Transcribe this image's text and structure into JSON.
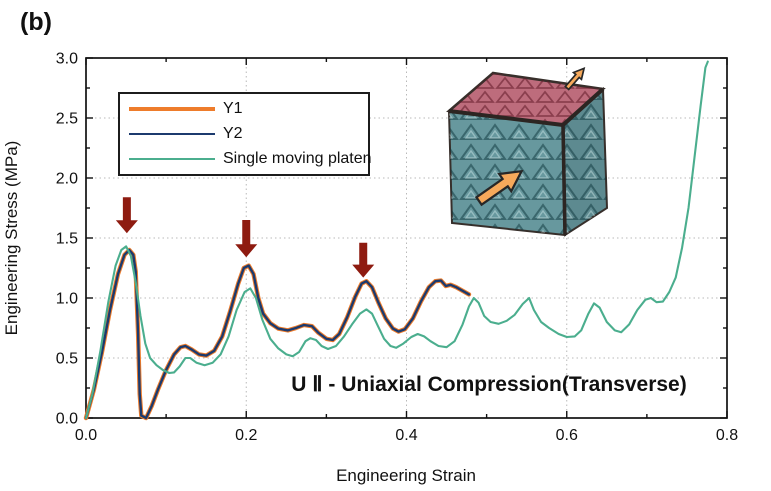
{
  "figure_label": "(b)",
  "annotation": {
    "text": "U Ⅱ - Uniaxial Compression(Transverse)"
  },
  "colors": {
    "y1_orange": "#ee7c2b",
    "y2_navy": "#1c3a6e",
    "single_platen_teal": "#4bae8e",
    "arrow_dark_red": "#8e1b10",
    "grid_gray": "#b9b9b9",
    "frame_black": "#111111"
  },
  "legend": {
    "position": "upper-left",
    "items": [
      "Y1",
      "Y2",
      "Single moving platen"
    ]
  },
  "chart_data": {
    "type": "line",
    "title": "",
    "xlabel": "Engineering Strain",
    "ylabel": "Engineering Stress (MPa)",
    "xlim": [
      0.0,
      0.8
    ],
    "ylim": [
      0.0,
      3.0
    ],
    "x_major_ticks": {
      "values": [
        0.0,
        0.2,
        0.4,
        0.6,
        0.8
      ],
      "labels": [
        "0.0",
        "0.2",
        "0.4",
        "0.6",
        "0.8"
      ]
    },
    "x_minor_step": 0.1,
    "y_major_ticks": {
      "values": [
        0.0,
        0.5,
        1.0,
        1.5,
        2.0,
        2.5,
        3.0
      ],
      "labels": [
        "0.0",
        "0.5",
        "1.0",
        "1.5",
        "2.0",
        "2.5",
        "3.0"
      ]
    },
    "y_minor_step": 0.25,
    "grid": {
      "on": true,
      "style": "dotted",
      "x_values": [
        0.2,
        0.4,
        0.6
      ],
      "y_values": [
        0.5,
        1.0,
        1.5,
        2.0,
        2.5
      ]
    },
    "legend_position": "upper-left",
    "series": [
      {
        "name": "Y1",
        "color": "#ee7c2b",
        "width": 4.4,
        "points": [
          [
            0,
            0
          ],
          [
            0.01,
            0.24
          ],
          [
            0.02,
            0.55
          ],
          [
            0.03,
            0.9
          ],
          [
            0.04,
            1.2
          ],
          [
            0.048,
            1.36
          ],
          [
            0.054,
            1.4
          ],
          [
            0.059,
            1.36
          ],
          [
            0.062,
            1.22
          ],
          [
            0.065,
            0.7
          ],
          [
            0.067,
            0.2
          ],
          [
            0.069,
            0.02
          ],
          [
            0.075,
            0
          ],
          [
            0.082,
            0.1
          ],
          [
            0.09,
            0.24
          ],
          [
            0.1,
            0.4
          ],
          [
            0.11,
            0.53
          ],
          [
            0.118,
            0.59
          ],
          [
            0.124,
            0.6
          ],
          [
            0.132,
            0.57
          ],
          [
            0.141,
            0.53
          ],
          [
            0.15,
            0.52
          ],
          [
            0.16,
            0.56
          ],
          [
            0.17,
            0.68
          ],
          [
            0.18,
            0.89
          ],
          [
            0.19,
            1.12
          ],
          [
            0.197,
            1.25
          ],
          [
            0.203,
            1.27
          ],
          [
            0.209,
            1.2
          ],
          [
            0.215,
            1
          ],
          [
            0.221,
            0.87
          ],
          [
            0.23,
            0.79
          ],
          [
            0.24,
            0.745
          ],
          [
            0.252,
            0.73
          ],
          [
            0.262,
            0.75
          ],
          [
            0.272,
            0.775
          ],
          [
            0.282,
            0.765
          ],
          [
            0.29,
            0.71
          ],
          [
            0.3,
            0.66
          ],
          [
            0.308,
            0.65
          ],
          [
            0.316,
            0.7
          ],
          [
            0.326,
            0.84
          ],
          [
            0.336,
            1.01
          ],
          [
            0.344,
            1.12
          ],
          [
            0.35,
            1.14
          ],
          [
            0.357,
            1.09
          ],
          [
            0.365,
            0.96
          ],
          [
            0.374,
            0.83
          ],
          [
            0.383,
            0.745
          ],
          [
            0.39,
            0.72
          ],
          [
            0.398,
            0.74
          ],
          [
            0.408,
            0.83
          ],
          [
            0.418,
            0.97
          ],
          [
            0.428,
            1.09
          ],
          [
            0.436,
            1.14
          ],
          [
            0.443,
            1.145
          ],
          [
            0.449,
            1.1
          ],
          [
            0.455,
            1.11
          ],
          [
            0.462,
            1.09
          ],
          [
            0.47,
            1.06
          ],
          [
            0.478,
            1.03
          ]
        ]
      },
      {
        "name": "Y2",
        "color": "#1c3a6e",
        "width": 2.4,
        "points": [
          [
            0,
            0
          ],
          [
            0.01,
            0.24
          ],
          [
            0.02,
            0.55
          ],
          [
            0.03,
            0.9
          ],
          [
            0.04,
            1.2
          ],
          [
            0.048,
            1.36
          ],
          [
            0.054,
            1.4
          ],
          [
            0.059,
            1.36
          ],
          [
            0.062,
            1.22
          ],
          [
            0.065,
            0.7
          ],
          [
            0.067,
            0.2
          ],
          [
            0.069,
            0.02
          ],
          [
            0.075,
            0
          ],
          [
            0.082,
            0.1
          ],
          [
            0.09,
            0.24
          ],
          [
            0.1,
            0.4
          ],
          [
            0.11,
            0.53
          ],
          [
            0.118,
            0.59
          ],
          [
            0.124,
            0.6
          ],
          [
            0.132,
            0.57
          ],
          [
            0.141,
            0.53
          ],
          [
            0.15,
            0.52
          ],
          [
            0.16,
            0.56
          ],
          [
            0.17,
            0.68
          ],
          [
            0.18,
            0.89
          ],
          [
            0.19,
            1.12
          ],
          [
            0.197,
            1.25
          ],
          [
            0.203,
            1.27
          ],
          [
            0.209,
            1.2
          ],
          [
            0.215,
            1
          ],
          [
            0.221,
            0.87
          ],
          [
            0.23,
            0.79
          ],
          [
            0.24,
            0.745
          ],
          [
            0.252,
            0.73
          ],
          [
            0.262,
            0.75
          ],
          [
            0.272,
            0.775
          ],
          [
            0.282,
            0.765
          ],
          [
            0.29,
            0.71
          ],
          [
            0.3,
            0.66
          ],
          [
            0.308,
            0.65
          ],
          [
            0.316,
            0.7
          ],
          [
            0.326,
            0.84
          ],
          [
            0.336,
            1.01
          ],
          [
            0.344,
            1.12
          ],
          [
            0.35,
            1.14
          ],
          [
            0.357,
            1.09
          ],
          [
            0.365,
            0.96
          ],
          [
            0.374,
            0.83
          ],
          [
            0.383,
            0.745
          ],
          [
            0.39,
            0.72
          ],
          [
            0.398,
            0.74
          ],
          [
            0.408,
            0.83
          ],
          [
            0.418,
            0.97
          ],
          [
            0.428,
            1.09
          ],
          [
            0.436,
            1.14
          ],
          [
            0.443,
            1.145
          ],
          [
            0.449,
            1.1
          ],
          [
            0.455,
            1.11
          ],
          [
            0.462,
            1.09
          ],
          [
            0.47,
            1.06
          ],
          [
            0.478,
            1.03
          ]
        ]
      },
      {
        "name": "Single moving platen",
        "color": "#4bae8e",
        "width": 2.1,
        "points": [
          [
            0,
            0
          ],
          [
            0.008,
            0.2
          ],
          [
            0.018,
            0.56
          ],
          [
            0.028,
            0.97
          ],
          [
            0.037,
            1.27
          ],
          [
            0.044,
            1.4
          ],
          [
            0.05,
            1.43
          ],
          [
            0.056,
            1.35
          ],
          [
            0.062,
            1.13
          ],
          [
            0.068,
            0.85
          ],
          [
            0.074,
            0.62
          ],
          [
            0.08,
            0.5
          ],
          [
            0.088,
            0.44
          ],
          [
            0.096,
            0.4
          ],
          [
            0.104,
            0.375
          ],
          [
            0.11,
            0.38
          ],
          [
            0.117,
            0.43
          ],
          [
            0.124,
            0.5
          ],
          [
            0.13,
            0.5
          ],
          [
            0.138,
            0.46
          ],
          [
            0.148,
            0.44
          ],
          [
            0.158,
            0.46
          ],
          [
            0.168,
            0.53
          ],
          [
            0.178,
            0.68
          ],
          [
            0.188,
            0.9
          ],
          [
            0.198,
            1.05
          ],
          [
            0.205,
            1.08
          ],
          [
            0.212,
            1
          ],
          [
            0.22,
            0.82
          ],
          [
            0.23,
            0.66
          ],
          [
            0.24,
            0.58
          ],
          [
            0.25,
            0.53
          ],
          [
            0.258,
            0.515
          ],
          [
            0.266,
            0.55
          ],
          [
            0.274,
            0.64
          ],
          [
            0.28,
            0.665
          ],
          [
            0.287,
            0.65
          ],
          [
            0.294,
            0.6
          ],
          [
            0.302,
            0.575
          ],
          [
            0.312,
            0.6
          ],
          [
            0.322,
            0.68
          ],
          [
            0.332,
            0.78
          ],
          [
            0.342,
            0.87
          ],
          [
            0.35,
            0.905
          ],
          [
            0.357,
            0.87
          ],
          [
            0.364,
            0.77
          ],
          [
            0.372,
            0.66
          ],
          [
            0.38,
            0.6
          ],
          [
            0.387,
            0.585
          ],
          [
            0.396,
            0.62
          ],
          [
            0.406,
            0.675
          ],
          [
            0.414,
            0.7
          ],
          [
            0.422,
            0.68
          ],
          [
            0.43,
            0.64
          ],
          [
            0.44,
            0.6
          ],
          [
            0.45,
            0.59
          ],
          [
            0.46,
            0.64
          ],
          [
            0.47,
            0.78
          ],
          [
            0.478,
            0.93
          ],
          [
            0.484,
            1
          ],
          [
            0.49,
            0.96
          ],
          [
            0.497,
            0.85
          ],
          [
            0.505,
            0.8
          ],
          [
            0.515,
            0.785
          ],
          [
            0.525,
            0.81
          ],
          [
            0.535,
            0.86
          ],
          [
            0.545,
            0.95
          ],
          [
            0.553,
            1
          ],
          [
            0.559,
            0.9
          ],
          [
            0.568,
            0.8
          ],
          [
            0.578,
            0.75
          ],
          [
            0.59,
            0.7
          ],
          [
            0.6,
            0.675
          ],
          [
            0.61,
            0.68
          ],
          [
            0.618,
            0.73
          ],
          [
            0.627,
            0.87
          ],
          [
            0.634,
            0.955
          ],
          [
            0.641,
            0.92
          ],
          [
            0.65,
            0.8
          ],
          [
            0.66,
            0.73
          ],
          [
            0.668,
            0.715
          ],
          [
            0.678,
            0.78
          ],
          [
            0.688,
            0.9
          ],
          [
            0.698,
            0.985
          ],
          [
            0.705,
            1
          ],
          [
            0.712,
            0.965
          ],
          [
            0.72,
            0.97
          ],
          [
            0.728,
            1.05
          ],
          [
            0.736,
            1.17
          ],
          [
            0.744,
            1.42
          ],
          [
            0.752,
            1.75
          ],
          [
            0.76,
            2.2
          ],
          [
            0.767,
            2.6
          ],
          [
            0.773,
            2.92
          ],
          [
            0.776,
            2.97
          ]
        ]
      }
    ],
    "arrows": [
      {
        "x": 0.051,
        "y_from": 1.84,
        "y_to": 1.54,
        "color": "#8e1b10"
      },
      {
        "x": 0.2,
        "y_from": 1.65,
        "y_to": 1.34,
        "color": "#8e1b10"
      },
      {
        "x": 0.346,
        "y_from": 1.46,
        "y_to": 1.17,
        "color": "#8e1b10"
      }
    ]
  },
  "inset": {
    "description": "3D lattice cube specimen, transverse compression direction",
    "top_color": "#bd6c7c",
    "front_color": "#67989e",
    "side_color": "#5d8a90",
    "edge_color": "#372f2b",
    "arrow_fill": "#f6a95b",
    "arrow_outline": "#272727"
  }
}
